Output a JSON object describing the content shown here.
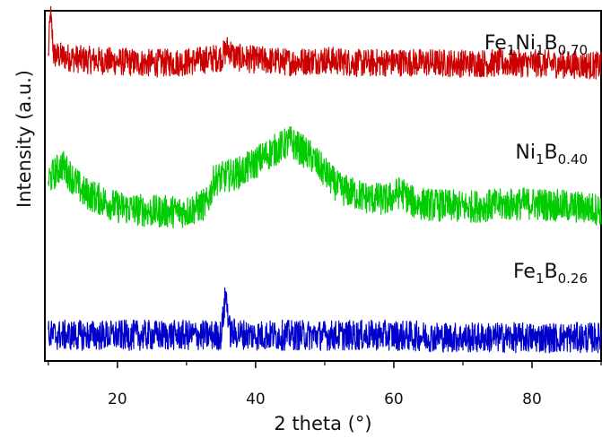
{
  "chart_data": {
    "type": "line",
    "title": "",
    "xlabel": "2 theta (°)",
    "ylabel": "Intensity (a.u.)",
    "xlim": [
      9.5,
      90
    ],
    "ylim": [
      0,
      3
    ],
    "xticks": [
      20,
      40,
      60,
      80
    ],
    "grid": false,
    "legend": "labels placed at right end of each trace",
    "series": [
      {
        "label_main": [
          "Fe",
          "1",
          "Ni",
          "1",
          "B",
          "0.70"
        ],
        "color": "#cc0000",
        "noise": 0.12,
        "points": [
          [
            10,
            2.6
          ],
          [
            10.3,
            2.98
          ],
          [
            10.8,
            2.62
          ],
          [
            15,
            2.58
          ],
          [
            25,
            2.55
          ],
          [
            30,
            2.56
          ],
          [
            35,
            2.6
          ],
          [
            36,
            2.68
          ],
          [
            37,
            2.6
          ],
          [
            40,
            2.58
          ],
          [
            45,
            2.56
          ],
          [
            50,
            2.58
          ],
          [
            55,
            2.55
          ],
          [
            60,
            2.56
          ],
          [
            70,
            2.55
          ],
          [
            80,
            2.55
          ],
          [
            90,
            2.53
          ]
        ]
      },
      {
        "label_main": [
          "Ni",
          "1",
          "B",
          "0.40"
        ],
        "color": "#00cc00",
        "noise": 0.14,
        "points": [
          [
            10,
            1.55
          ],
          [
            12,
            1.68
          ],
          [
            15,
            1.45
          ],
          [
            20,
            1.32
          ],
          [
            25,
            1.28
          ],
          [
            30,
            1.28
          ],
          [
            33,
            1.35
          ],
          [
            34,
            1.55
          ],
          [
            38,
            1.62
          ],
          [
            42,
            1.78
          ],
          [
            45,
            1.88
          ],
          [
            48,
            1.75
          ],
          [
            52,
            1.48
          ],
          [
            56,
            1.4
          ],
          [
            59,
            1.38
          ],
          [
            61,
            1.45
          ],
          [
            63,
            1.35
          ],
          [
            70,
            1.32
          ],
          [
            80,
            1.35
          ],
          [
            90,
            1.3
          ]
        ]
      },
      {
        "label_main": [
          "Fe",
          "1",
          "B",
          "0.26"
        ],
        "color": "#0000cc",
        "noise": 0.13,
        "points": [
          [
            10,
            0.22
          ],
          [
            20,
            0.22
          ],
          [
            30,
            0.22
          ],
          [
            35,
            0.22
          ],
          [
            35.7,
            0.58
          ],
          [
            36.3,
            0.24
          ],
          [
            40,
            0.22
          ],
          [
            50,
            0.22
          ],
          [
            60,
            0.22
          ],
          [
            70,
            0.2
          ],
          [
            80,
            0.2
          ],
          [
            90,
            0.2
          ]
        ]
      }
    ]
  }
}
